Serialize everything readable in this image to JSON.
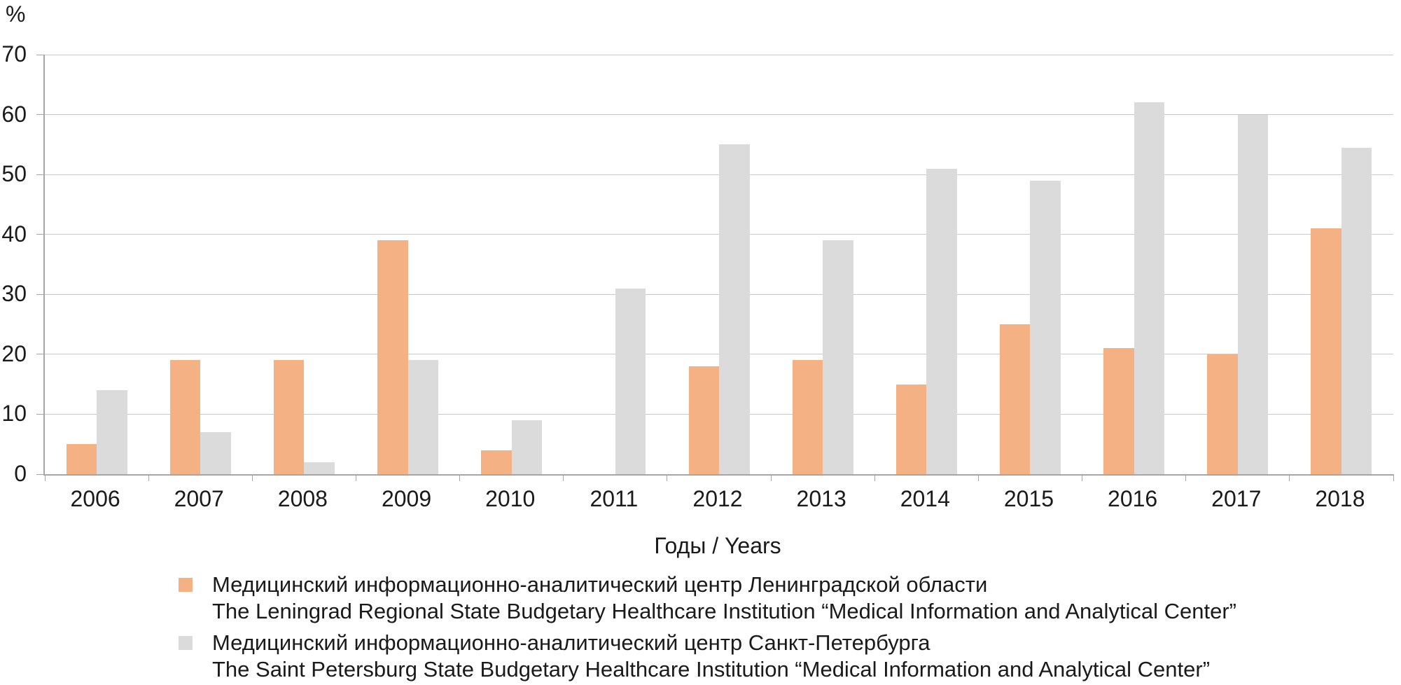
{
  "chart_data": {
    "type": "bar",
    "title": "",
    "ylabel": "%",
    "xlabel": "Годы / Years",
    "ylim": [
      0,
      70
    ],
    "ytick_step": 10,
    "grid": true,
    "legend_position": "bottom",
    "categories": [
      "2006",
      "2007",
      "2008",
      "2009",
      "2010",
      "2011",
      "2012",
      "2013",
      "2014",
      "2015",
      "2016",
      "2017",
      "2018"
    ],
    "series": [
      {
        "id": "miac-leningrad-region",
        "color": "#F4B183",
        "label_ru": "Медицинский информационно-аналитический центр Ленинградской области",
        "label_en": "The Leningrad Regional State Budgetary Healthcare Institution “Medical Information and Analytical Center”",
        "values": [
          5,
          19,
          19,
          39,
          4,
          null,
          18,
          19,
          15,
          25,
          21,
          20,
          41
        ]
      },
      {
        "id": "miac-saint-petersburg",
        "color": "#DBDBDB",
        "label_ru": "Медицинский информационно-аналитический центр Санкт-Петербурга",
        "label_en": "The Saint Petersburg State Budgetary Healthcare Institution “Medical Information and Analytical Center”",
        "values": [
          14,
          7,
          2,
          19,
          9,
          31,
          55,
          39,
          51,
          49,
          62,
          60,
          54.5
        ]
      }
    ]
  },
  "colors": {
    "gridline": "#C9C9C9",
    "axis": "#A6A6A6",
    "text": "#1A1A1A"
  }
}
